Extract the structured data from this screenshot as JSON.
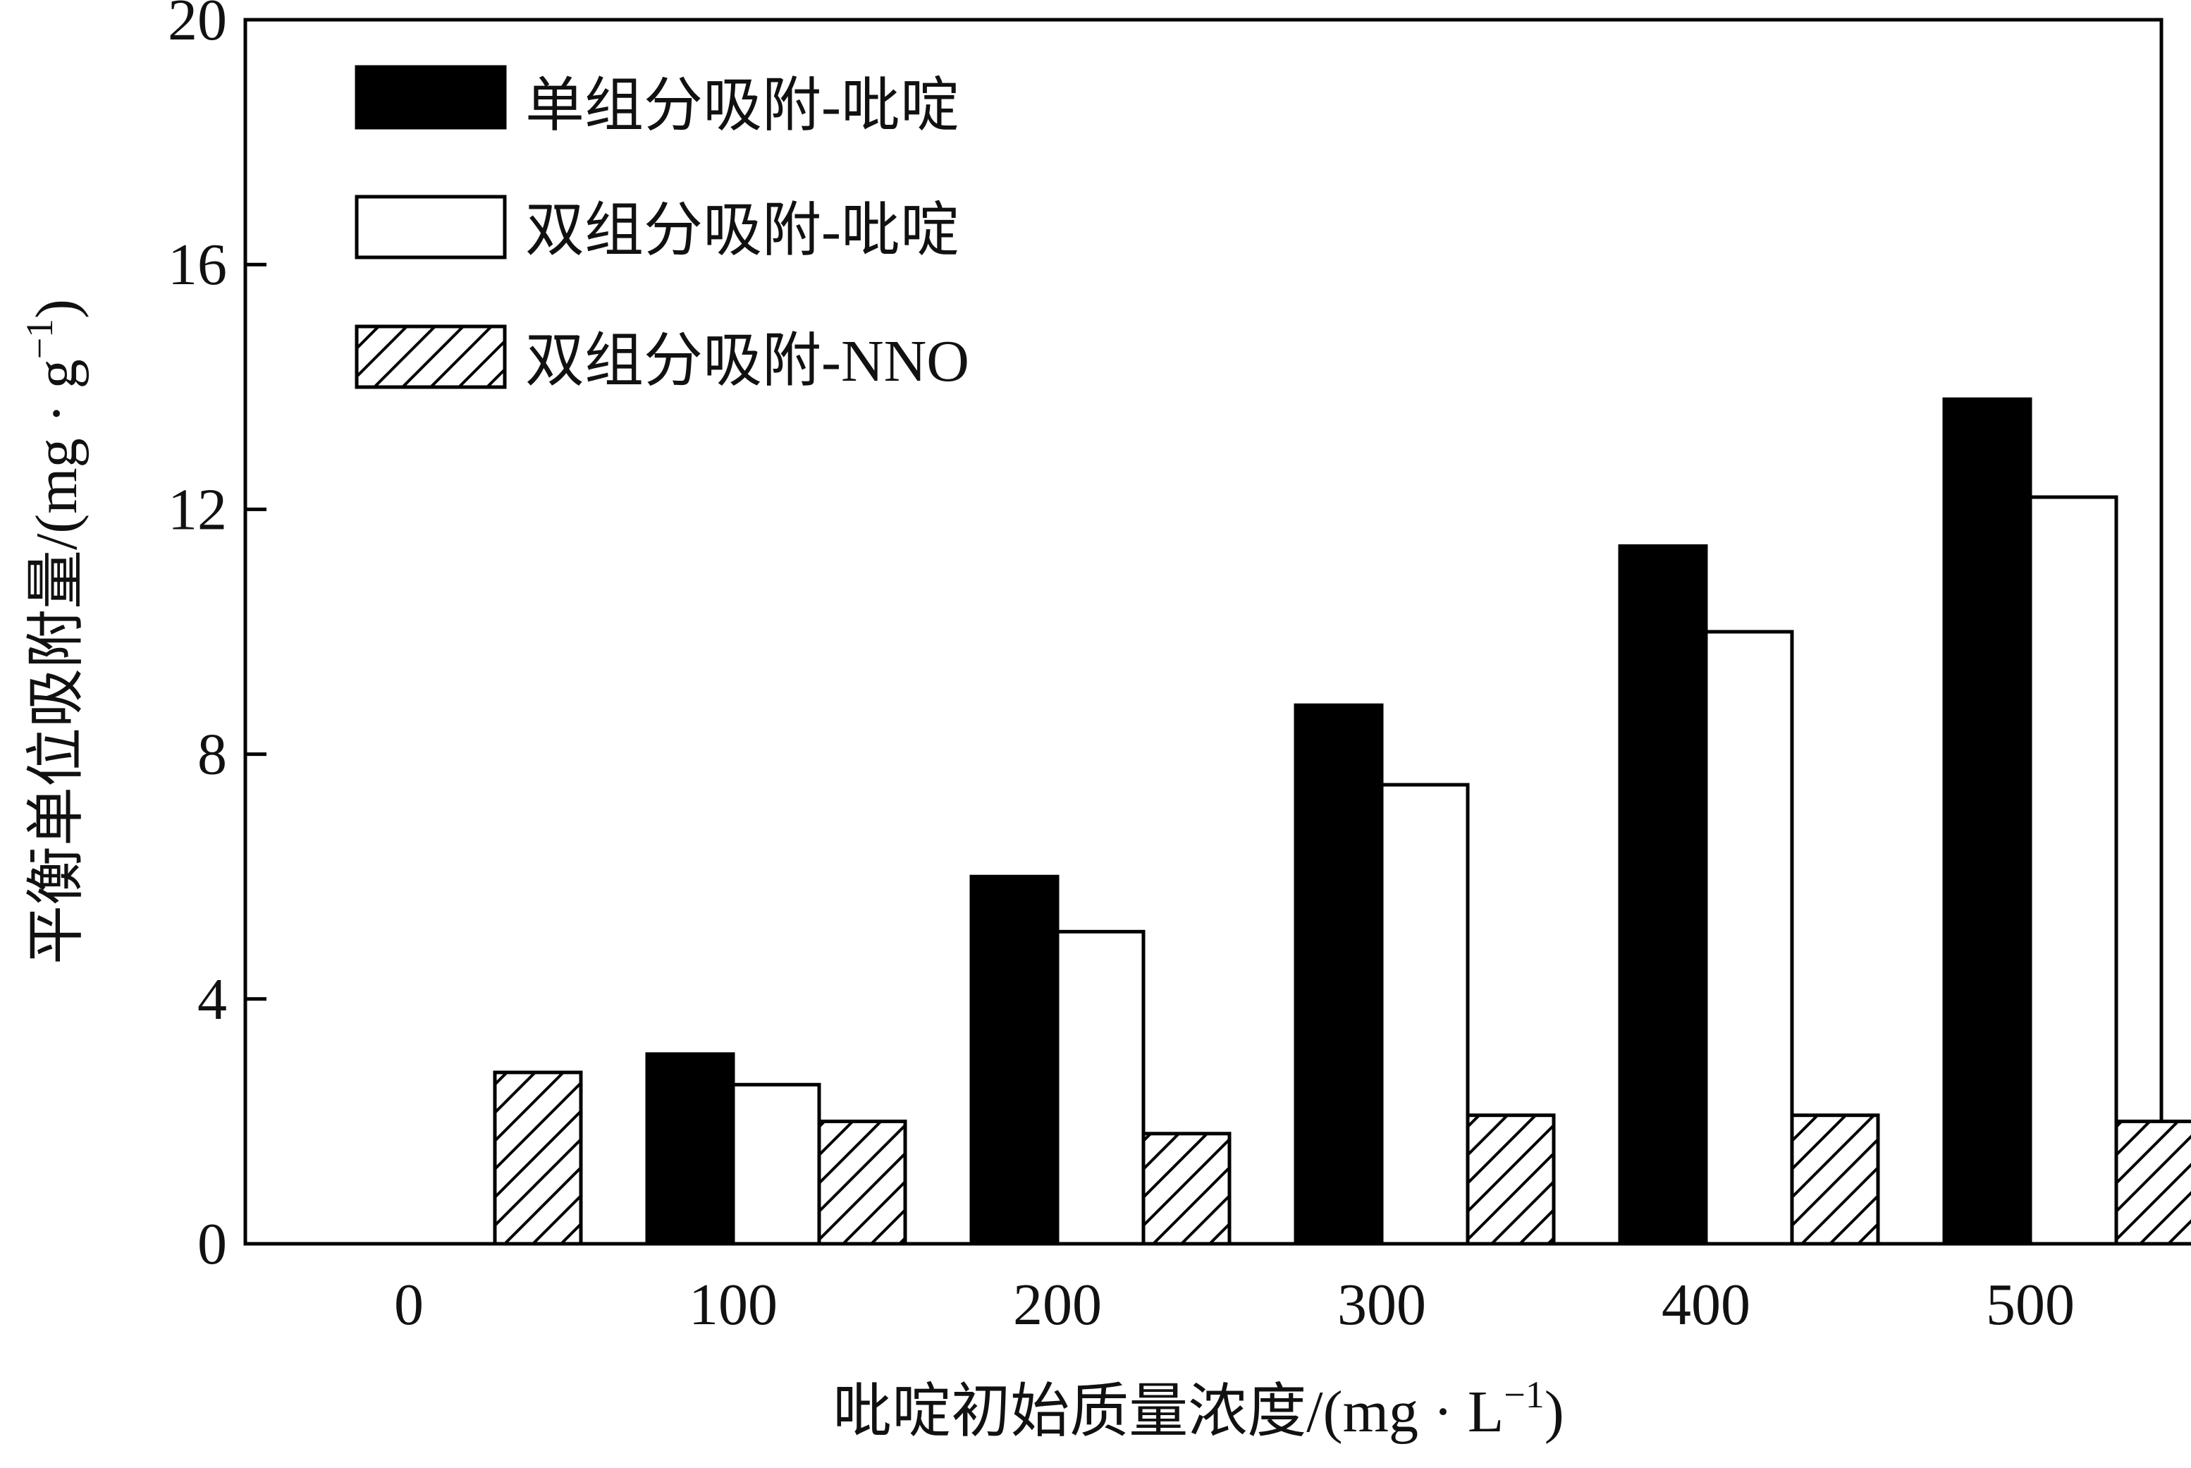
{
  "chart_data": {
    "type": "bar",
    "categories": [
      "0",
      "100",
      "200",
      "300",
      "400",
      "500"
    ],
    "series": [
      {
        "name": "单组分吸附-吡啶",
        "values": [
          0,
          3.1,
          6.0,
          8.8,
          11.4,
          13.8
        ],
        "fill": "#000000",
        "pattern": "solid"
      },
      {
        "name": "双组分吸附-吡啶",
        "values": [
          0,
          2.6,
          5.1,
          7.5,
          10.0,
          12.2
        ],
        "fill": "#ffffff",
        "pattern": "none"
      },
      {
        "name": "双组分吸附-NNO",
        "values": [
          2.8,
          2.0,
          1.8,
          2.1,
          2.1,
          2.0
        ],
        "fill": "#ffffff",
        "pattern": "hatch"
      }
    ],
    "yticks": [
      "0",
      "4",
      "8",
      "12",
      "16",
      "20"
    ],
    "ylim": [
      0,
      20
    ],
    "xlabel": "吡啶初始质量浓度/(mg · L",
    "xlabel_sup": "−1",
    "xlabel_end": ")",
    "ylabel": "平衡单位吸附量/(mg · g",
    "ylabel_sup": "−1",
    "ylabel_end": ")",
    "legend_position": "top-left",
    "grid": false,
    "colors": {
      "axis": "#000000",
      "text": "#111111",
      "background": "#ffffff"
    }
  }
}
